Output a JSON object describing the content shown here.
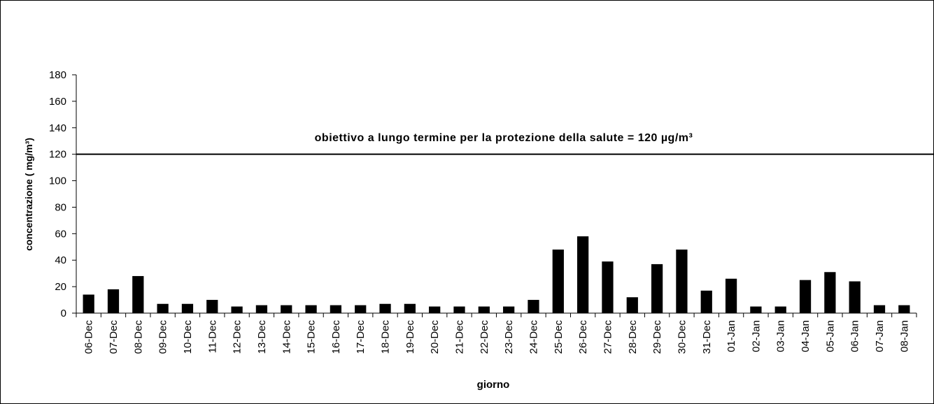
{
  "chart_data": {
    "type": "bar",
    "annotation": "obiettivo a lungo termine per la protezione della salute = 120 µg/m³",
    "reference_line": 120,
    "x_label": "giorno",
    "y_label": "concentrazione ( mg/m³)",
    "categories": [
      "06-Dec",
      "07-Dec",
      "08-Dec",
      "09-Dec",
      "10-Dec",
      "11-Dec",
      "12-Dec",
      "13-Dec",
      "14-Dec",
      "15-Dec",
      "16-Dec",
      "17-Dec",
      "18-Dec",
      "19-Dec",
      "20-Dec",
      "21-Dec",
      "22-Dec",
      "23-Dec",
      "24-Dec",
      "25-Dec",
      "26-Dec",
      "27-Dec",
      "28-Dec",
      "29-Dec",
      "30-Dec",
      "31-Dec",
      "01-Jan",
      "02-Jan",
      "03-Jan",
      "04-Jan",
      "05-Jan",
      "06-Jan",
      "07-Jan",
      "08-Jan"
    ],
    "values": [
      14,
      18,
      28,
      7,
      7,
      10,
      5,
      6,
      6,
      6,
      6,
      6,
      7,
      7,
      5,
      5,
      5,
      5,
      10,
      48,
      58,
      39,
      12,
      37,
      48,
      17,
      26,
      5,
      5,
      25,
      31,
      24,
      6,
      6
    ],
    "color": "#000000",
    "ylim": [
      0,
      180
    ],
    "yticks": [
      0,
      20,
      40,
      60,
      80,
      100,
      120,
      140,
      160,
      180
    ]
  }
}
